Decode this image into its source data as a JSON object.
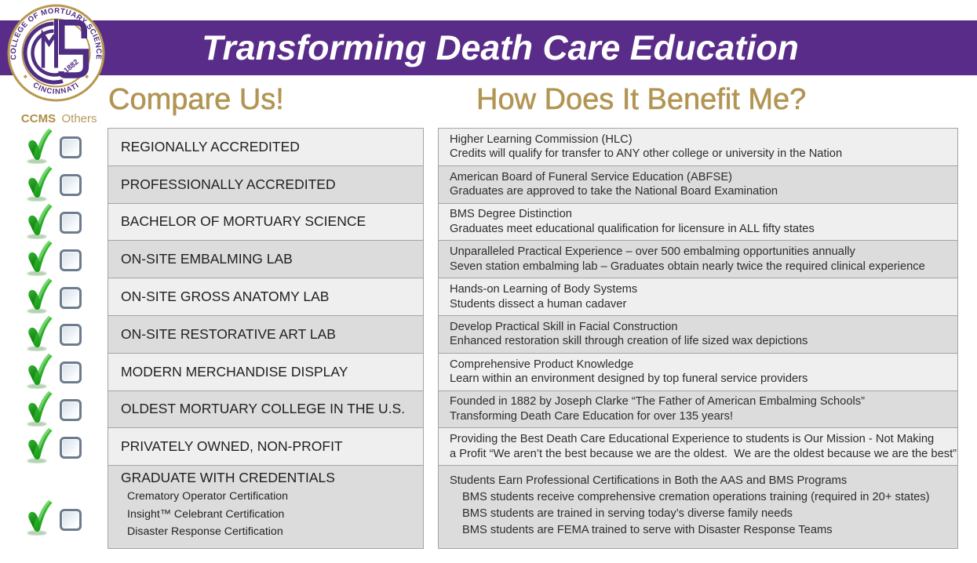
{
  "header": {
    "title": "Transforming Death Care Education",
    "band_color": "#592c8a",
    "title_color": "#ffffff"
  },
  "logo": {
    "top_text": "COLLEGE OF MORTUARY SCIENCE",
    "bottom_text": "CINCINNATI",
    "year": "1882",
    "monogram": "CMS",
    "gold_color": "#b8974f",
    "purple_color": "#4f2d82"
  },
  "headings": {
    "compare": "Compare Us!",
    "benefit": "How Does It Benefit Me?",
    "color": "#b29553"
  },
  "check_header": {
    "ccms": "CCMS",
    "others": "Others"
  },
  "colors": {
    "row_light": "#efefef",
    "row_dark": "#dcdcdc",
    "row_border": "#a4a4a4",
    "check_green": "#2db82d",
    "checkbox_border": "#6d7c8d"
  },
  "rows": [
    {
      "feature": "REGIONALLY ACCREDITED",
      "ccms_checked": true,
      "others_checked": false,
      "benefit_lines": [
        "Higher Learning Commission (HLC)",
        "Credits will qualify for transfer to ANY other college or university in the Nation"
      ]
    },
    {
      "feature": "PROFESSIONALLY ACCREDITED",
      "ccms_checked": true,
      "others_checked": false,
      "benefit_lines": [
        "American Board of Funeral Service Education (ABFSE)",
        "Graduates are approved to take the National Board Examination"
      ]
    },
    {
      "feature": "BACHELOR OF MORTUARY SCIENCE",
      "ccms_checked": true,
      "others_checked": false,
      "benefit_lines": [
        "BMS Degree Distinction",
        "Graduates meet educational qualification for licensure in ALL fifty states"
      ]
    },
    {
      "feature": "ON-SITE EMBALMING LAB",
      "ccms_checked": true,
      "others_checked": false,
      "benefit_lines": [
        "Unparalleled Practical Experience – over 500 embalming opportunities annually",
        "Seven station embalming lab – Graduates obtain nearly twice the required clinical experience"
      ]
    },
    {
      "feature": "ON-SITE GROSS ANATOMY LAB",
      "ccms_checked": true,
      "others_checked": false,
      "benefit_lines": [
        "Hands-on Learning of Body Systems",
        "Students dissect a human cadaver"
      ]
    },
    {
      "feature": "ON-SITE RESTORATIVE ART LAB",
      "ccms_checked": true,
      "others_checked": false,
      "benefit_lines": [
        "Develop Practical Skill in Facial Construction",
        "Enhanced restoration skill through creation of life sized wax depictions"
      ]
    },
    {
      "feature": "MODERN MERCHANDISE DISPLAY",
      "ccms_checked": true,
      "others_checked": false,
      "benefit_lines": [
        "Comprehensive Product Knowledge",
        "Learn within an environment designed by top funeral service providers"
      ]
    },
    {
      "feature": "OLDEST MORTUARY COLLEGE IN THE U.S.",
      "ccms_checked": true,
      "others_checked": false,
      "benefit_lines": [
        "Founded in 1882 by Joseph Clarke “The Father of American Embalming Schools”",
        "Transforming Death Care Education for over 135 years!"
      ]
    },
    {
      "feature": "PRIVATELY OWNED, NON-PROFIT",
      "ccms_checked": true,
      "others_checked": false,
      "benefit_lines": [
        "Providing the Best Death Care Educational Experience to students is Our Mission - Not Making",
        "a Profit “We aren’t the best because we are the oldest.  We are the oldest because we are the best”"
      ]
    },
    {
      "feature": "GRADUATE WITH CREDENTIALS",
      "feature_subitems": [
        "Crematory Operator Certification",
        "Insight™ Celebrant Certification",
        "Disaster Response Certification"
      ],
      "ccms_checked": true,
      "others_checked": false,
      "benefit_lines": [
        "Students Earn Professional Certifications in Both the AAS and BMS Programs",
        "BMS students receive comprehensive cremation operations training (required in 20+ states)",
        "BMS students are trained in serving today’s diverse family needs",
        "BMS students are FEMA trained to serve with Disaster Response Teams"
      ],
      "benefit_indent_from": 1
    }
  ]
}
